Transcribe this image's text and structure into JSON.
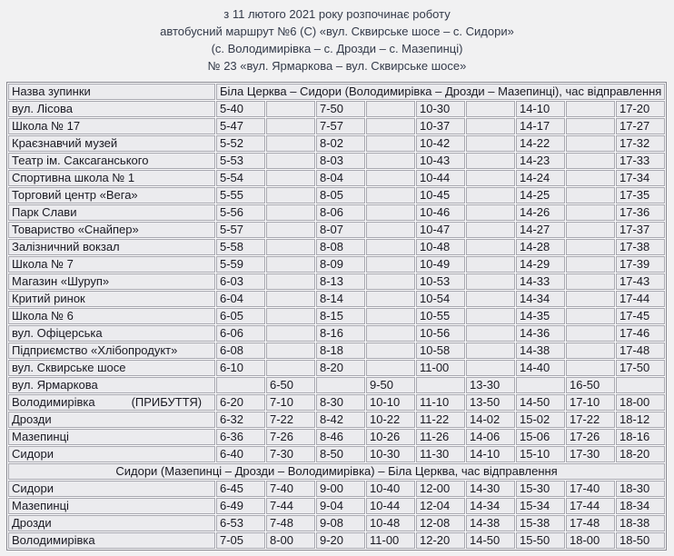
{
  "colors": {
    "page_background": "#f1f1f2",
    "cell_background": "#ebebee",
    "cell_border": "#a8a8b0",
    "header_text": "#333a49",
    "table_text": "#191922"
  },
  "header": {
    "lines": [
      "з 11 лютого 2021 року розпочинає роботу",
      "автобусний маршрут №6 (С) «вул. Сквирське шосе – с. Сидори»",
      "(с. Володимирівка – с. Дрозди – с. Мазепинці)",
      "№ 23 «вул. Ярмаркова – вул. Сквирське шосе»"
    ]
  },
  "table": {
    "name_header": "Назва зупинки",
    "direction1_header": "Біла Церква – Сидори (Володимирівка – Дрозди – Мазепинці), час відправлення",
    "direction2_header": "Сидори (Мазепинці – Дрозди – Володимирівка) – Біла Церква, час відправлення",
    "section1_rows": [
      {
        "name": "вул. Лісова",
        "times": [
          "5-40",
          "",
          "7-50",
          "",
          "10-30",
          "",
          "14-10",
          "",
          "17-20"
        ]
      },
      {
        "name": "Школа № 17",
        "times": [
          "5-47",
          "",
          "7-57",
          "",
          "10-37",
          "",
          "14-17",
          "",
          "17-27"
        ]
      },
      {
        "name": "Краєзнавчий музей",
        "times": [
          "5-52",
          "",
          "8-02",
          "",
          "10-42",
          "",
          "14-22",
          "",
          "17-32"
        ]
      },
      {
        "name": "Театр ім. Саксаганського",
        "times": [
          "5-53",
          "",
          "8-03",
          "",
          "10-43",
          "",
          "14-23",
          "",
          "17-33"
        ]
      },
      {
        "name": "Спортивна школа № 1",
        "times": [
          "5-54",
          "",
          "8-04",
          "",
          "10-44",
          "",
          "14-24",
          "",
          "17-34"
        ]
      },
      {
        "name": "Торговий центр «Вега»",
        "times": [
          "5-55",
          "",
          "8-05",
          "",
          "10-45",
          "",
          "14-25",
          "",
          "17-35"
        ]
      },
      {
        "name": "Парк Слави",
        "times": [
          "5-56",
          "",
          "8-06",
          "",
          "10-46",
          "",
          "14-26",
          "",
          "17-36"
        ]
      },
      {
        "name": "Товариство «Снайпер»",
        "times": [
          "5-57",
          "",
          "8-07",
          "",
          "10-47",
          "",
          "14-27",
          "",
          "17-37"
        ]
      },
      {
        "name": "Залізничний вокзал",
        "times": [
          "5-58",
          "",
          "8-08",
          "",
          "10-48",
          "",
          "14-28",
          "",
          "17-38"
        ]
      },
      {
        "name": "Школа № 7",
        "times": [
          "5-59",
          "",
          "8-09",
          "",
          "10-49",
          "",
          "14-29",
          "",
          "17-39"
        ]
      },
      {
        "name": "Магазин «Шуруп»",
        "times": [
          "6-03",
          "",
          "8-13",
          "",
          "10-53",
          "",
          "14-33",
          "",
          "17-43"
        ]
      },
      {
        "name": "Критий ринок",
        "times": [
          "6-04",
          "",
          "8-14",
          "",
          "10-54",
          "",
          "14-34",
          "",
          "17-44"
        ]
      },
      {
        "name": "Школа № 6",
        "times": [
          "6-05",
          "",
          "8-15",
          "",
          "10-55",
          "",
          "14-35",
          "",
          "17-45"
        ]
      },
      {
        "name": "вул. Офіцерська",
        "times": [
          "6-06",
          "",
          "8-16",
          "",
          "10-56",
          "",
          "14-36",
          "",
          "17-46"
        ]
      },
      {
        "name": "Підприємство «Хлібопродукт»",
        "times": [
          "6-08",
          "",
          "8-18",
          "",
          "10-58",
          "",
          "14-38",
          "",
          "17-48"
        ]
      },
      {
        "name": "вул. Сквирське шосе",
        "times": [
          "6-10",
          "",
          "8-20",
          "",
          "11-00",
          "",
          "14-40",
          "",
          "17-50"
        ]
      },
      {
        "name": "вул. Ярмаркова",
        "times": [
          "",
          "6-50",
          "",
          "9-50",
          "",
          "13-30",
          "",
          "16-50",
          ""
        ]
      },
      {
        "name": "Володимирівка",
        "note": "(ПРИБУТТЯ)",
        "times": [
          "6-20",
          "7-10",
          "8-30",
          "10-10",
          "11-10",
          "13-50",
          "14-50",
          "17-10",
          "18-00"
        ]
      },
      {
        "name": "Дрозди",
        "times": [
          "6-32",
          "7-22",
          "8-42",
          "10-22",
          "11-22",
          "14-02",
          "15-02",
          "17-22",
          "18-12"
        ]
      },
      {
        "name": "Мазепинці",
        "times": [
          "6-36",
          "7-26",
          "8-46",
          "10-26",
          "11-26",
          "14-06",
          "15-06",
          "17-26",
          "18-16"
        ]
      },
      {
        "name": "Сидори",
        "times": [
          "6-40",
          "7-30",
          "8-50",
          "10-30",
          "11-30",
          "14-10",
          "15-10",
          "17-30",
          "18-20"
        ]
      }
    ],
    "section2_rows": [
      {
        "name": "Сидори",
        "times": [
          "6-45",
          "7-40",
          "9-00",
          "10-40",
          "12-00",
          "14-30",
          "15-30",
          "17-40",
          "18-30"
        ]
      },
      {
        "name": "Мазепинці",
        "times": [
          "6-49",
          "7-44",
          "9-04",
          "10-44",
          "12-04",
          "14-34",
          "15-34",
          "17-44",
          "18-34"
        ]
      },
      {
        "name": "Дрозди",
        "times": [
          "6-53",
          "7-48",
          "9-08",
          "10-48",
          "12-08",
          "14-38",
          "15-38",
          "17-48",
          "18-38"
        ]
      },
      {
        "name": "Володимирівка",
        "times": [
          "7-05",
          "8-00",
          "9-20",
          "11-00",
          "12-20",
          "14-50",
          "15-50",
          "18-00",
          "18-50"
        ]
      }
    ]
  }
}
